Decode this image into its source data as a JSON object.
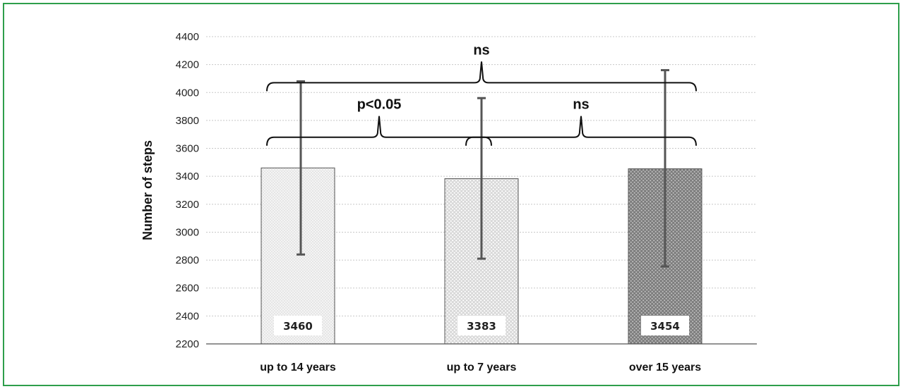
{
  "chart_data": {
    "type": "bar",
    "title": "",
    "xlabel": "",
    "ylabel": "Number of steps",
    "ylim": [
      2200,
      4400
    ],
    "yticks": [
      2200,
      2400,
      2600,
      2800,
      3000,
      3200,
      3400,
      3600,
      3800,
      4000,
      4200,
      4400
    ],
    "grid": true,
    "categories": [
      "up to 14 years",
      "up to 7 years",
      "over 15 years"
    ],
    "values": [
      3460,
      3383,
      3454
    ],
    "data_labels": [
      "3460",
      "3383",
      "3454"
    ],
    "error_bars": [
      {
        "low": 2840,
        "high": 4080
      },
      {
        "low": 2810,
        "high": 3960
      },
      {
        "low": 2755,
        "high": 4160
      }
    ],
    "bar_fills": [
      "#f1f1f1",
      "#c9c9c9",
      "#8a8a8a"
    ],
    "annotations": [
      {
        "label": "p<0.05",
        "from": 0,
        "to": 1,
        "level": 3680
      },
      {
        "label": "ns",
        "from": 1,
        "to": 2,
        "level": 3680
      },
      {
        "label": "ns",
        "from": 0,
        "to": 2,
        "level": 4070
      }
    ]
  },
  "colors": {
    "border": "#2e9e4b",
    "grid": "#c8c8c8",
    "axis": "#555555",
    "error_bar": "#555555"
  }
}
